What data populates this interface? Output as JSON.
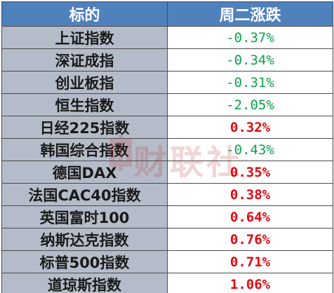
{
  "table": {
    "headers": [
      "标的",
      "周二涨跌"
    ],
    "rows": [
      {
        "name": "上证指数",
        "change": "-0.37%",
        "direction": "down"
      },
      {
        "name": "深证成指",
        "change": "-0.34%",
        "direction": "down"
      },
      {
        "name": "创业板指",
        "change": "-0.31%",
        "direction": "down"
      },
      {
        "name": "恒生指数",
        "change": "-2.05%",
        "direction": "down"
      },
      {
        "name": "日经225指数",
        "change": "0.32%",
        "direction": "up"
      },
      {
        "name": "韩国综合指数",
        "change": "-0.43%",
        "direction": "down"
      },
      {
        "name": "德国DAX",
        "change": "0.35%",
        "direction": "up"
      },
      {
        "name": "法国CAC40指数",
        "change": "0.38%",
        "direction": "up"
      },
      {
        "name": "英国富时100",
        "change": "0.64%",
        "direction": "up"
      },
      {
        "name": "纳斯达克指数",
        "change": "0.76%",
        "direction": "up"
      },
      {
        "name": "标普500指数",
        "change": "0.71%",
        "direction": "up"
      },
      {
        "name": "道琼斯指数",
        "change": "1.06%",
        "direction": "up"
      }
    ]
  },
  "watermark": {
    "text": "财联社",
    "icon": "cailianshe-logo-icon"
  },
  "colors": {
    "header_bg": "#4f81bd",
    "name_bg": "#b5bcc9",
    "negative": "#0aa34a",
    "positive": "#e4060f",
    "watermark": "#b02020"
  }
}
